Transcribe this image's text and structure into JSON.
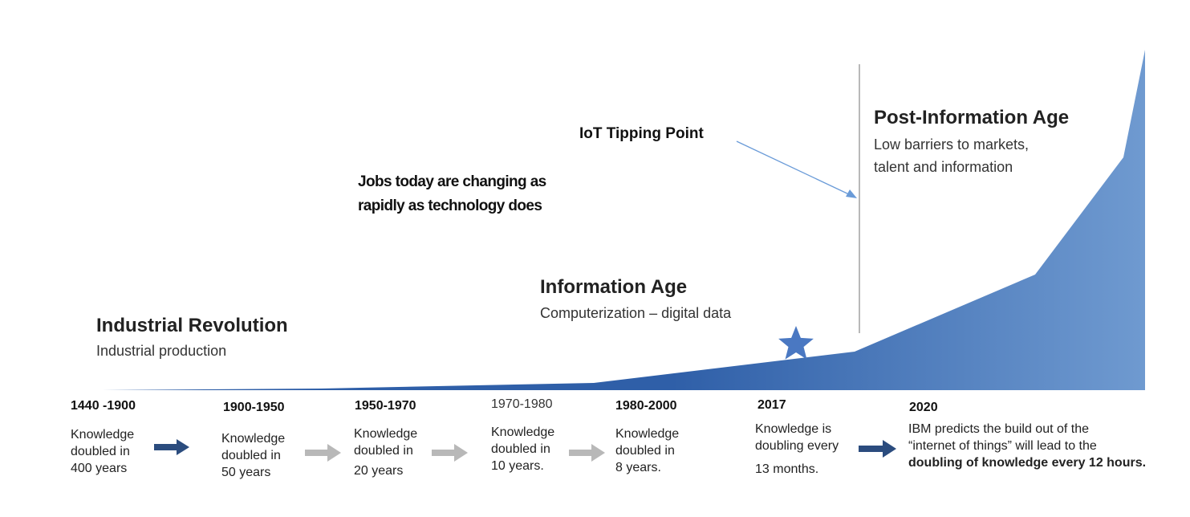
{
  "colors": {
    "area_dark": "#2f5fa8",
    "area_light": "#6f9ad0",
    "star": "#4a78c2",
    "arrow_dark": "#2b4c7e",
    "arrow_light": "#b8b8b8",
    "line": "#8a8a8a",
    "pointer": "#6a9bd8"
  },
  "eras": {
    "industrial": {
      "title": "Industrial Revolution",
      "subtitle": "Industrial production"
    },
    "information": {
      "title": "Information Age",
      "subtitle": "Computerization – digital data"
    },
    "post_information": {
      "title": "Post-Information Age",
      "subtitle_line1": "Low barriers to markets,",
      "subtitle_line2": "talent and information"
    }
  },
  "callouts": {
    "jobs_line1": "Jobs today are changing as",
    "jobs_line2": "rapidly as technology does",
    "iot": "IoT Tipping Point"
  },
  "timeline": [
    {
      "period": "1440 -1900",
      "lines": [
        "Knowledge",
        "doubled in",
        "400 years"
      ]
    },
    {
      "period": "1900-1950",
      "lines": [
        "Knowledge",
        "doubled in",
        "50 years"
      ]
    },
    {
      "period": "1950-1970",
      "lines": [
        "Knowledge",
        "doubled in",
        "20 years"
      ]
    },
    {
      "period": "1970-1980",
      "lines": [
        "Knowledge",
        "doubled in",
        "10 years."
      ]
    },
    {
      "period": "1980-2000",
      "lines": [
        "Knowledge",
        "doubled in",
        "8 years."
      ]
    },
    {
      "period": "2017",
      "lines": [
        "Knowledge is",
        "doubling every",
        "13 months."
      ]
    },
    {
      "period": "2020",
      "lines": [
        "IBM predicts the build out of  the",
        "“internet of things” will lead to the",
        "doubling of knowledge every 12 hours."
      ]
    }
  ],
  "icons": {
    "milestone": "star-icon",
    "step_arrows": [
      "arrow-right-dark",
      "arrow-right-light",
      "arrow-right-light",
      "arrow-right-light",
      "arrow-right-dark"
    ]
  }
}
